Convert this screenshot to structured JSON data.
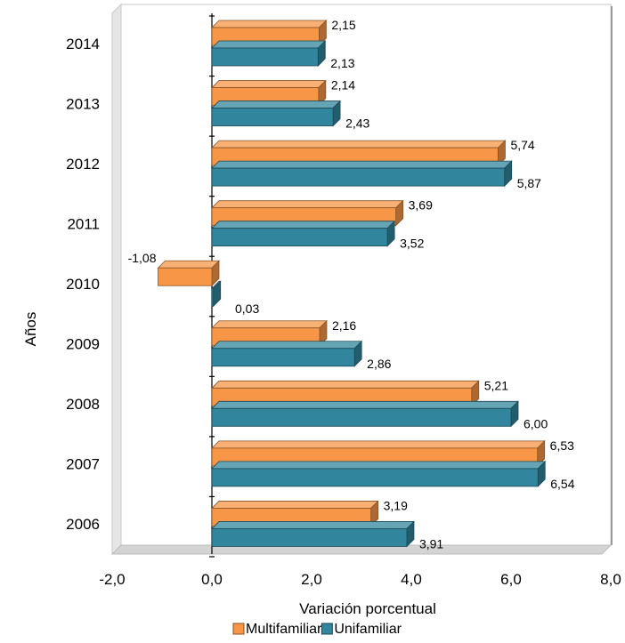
{
  "chart_data": {
    "type": "bar",
    "orientation": "horizontal",
    "three_d": true,
    "categories": [
      "2006",
      "2007",
      "2008",
      "2009",
      "2010",
      "2011",
      "2012",
      "2013",
      "2014"
    ],
    "series": [
      {
        "name": "Multifamiliar",
        "color": "#f79646",
        "values": [
          3.19,
          6.53,
          5.21,
          2.16,
          -1.08,
          3.69,
          5.74,
          2.14,
          2.15
        ],
        "labels": [
          "3,19",
          "6,53",
          "5,21",
          "2,16",
          "-1,08",
          "3,69",
          "5,74",
          "2,14",
          "2,15"
        ]
      },
      {
        "name": "Unifamiliar",
        "color": "#31859c",
        "values": [
          3.91,
          6.54,
          6.0,
          2.86,
          0.03,
          3.52,
          5.87,
          2.43,
          2.13
        ],
        "labels": [
          "3,91",
          "6,54",
          "6,00",
          "2,86",
          "0,03",
          "3,52",
          "5,87",
          "2,43",
          "2,13"
        ]
      }
    ],
    "xlim": [
      -2,
      8
    ],
    "xticks": [
      -2,
      0,
      2,
      4,
      6,
      8
    ],
    "xtick_labels": [
      "-2,0",
      "0,0",
      "2,0",
      "4,0",
      "6,0",
      "8,0"
    ],
    "xlabel": "Variación porcentual",
    "ylabel": "Años",
    "legend_position": "bottom",
    "grid": false
  }
}
